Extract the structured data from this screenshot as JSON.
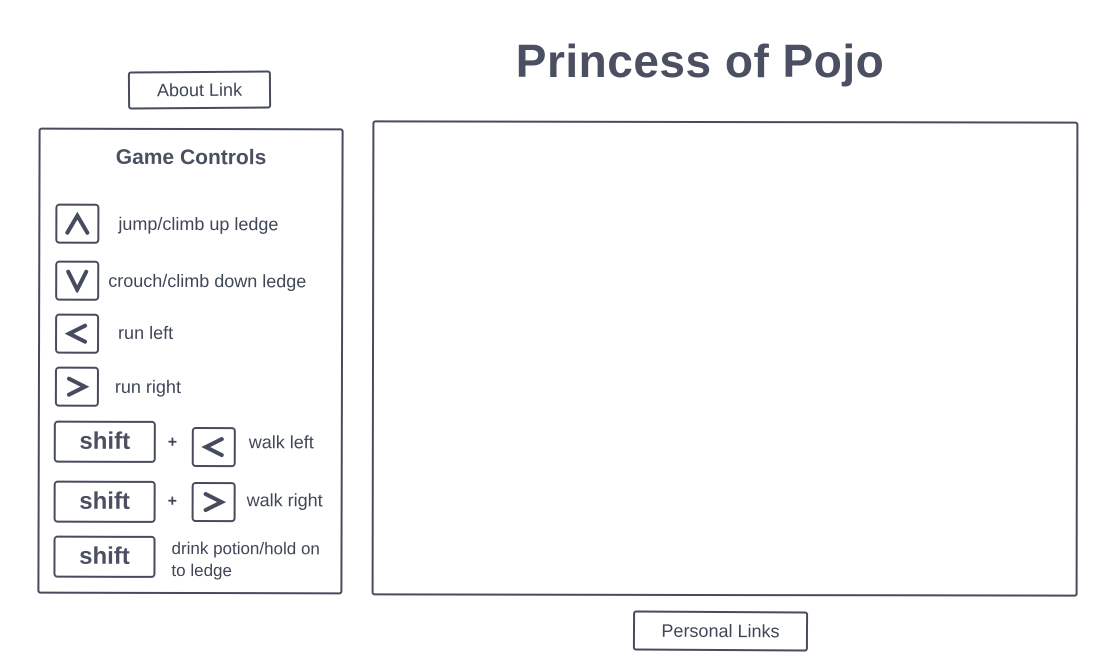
{
  "header": {
    "title": "Princess of Pojo",
    "about_link": "About Link"
  },
  "controls": {
    "heading": "Game Controls",
    "items": [
      {
        "keys": [
          "up-arrow-key"
        ],
        "label": "jump/climb up ledge"
      },
      {
        "keys": [
          "down-arrow-key"
        ],
        "label": "crouch/climb down ledge"
      },
      {
        "keys": [
          "left-arrow-key"
        ],
        "label": "run left"
      },
      {
        "keys": [
          "right-arrow-key"
        ],
        "label": "run right"
      },
      {
        "keys": [
          "shift",
          "left-arrow-key"
        ],
        "modifier": "shift",
        "joiner": "+",
        "label": "walk left"
      },
      {
        "keys": [
          "shift",
          "right-arrow-key"
        ],
        "modifier": "shift",
        "joiner": "+",
        "label": "walk right"
      },
      {
        "keys": [
          "shift"
        ],
        "modifier": "shift",
        "label": "drink potion/hold on to ledge"
      }
    ]
  },
  "footer": {
    "personal_links": "Personal Links"
  },
  "colors": {
    "stroke": "#464c5e",
    "text": "#3f4656",
    "background": "#ffffff"
  }
}
